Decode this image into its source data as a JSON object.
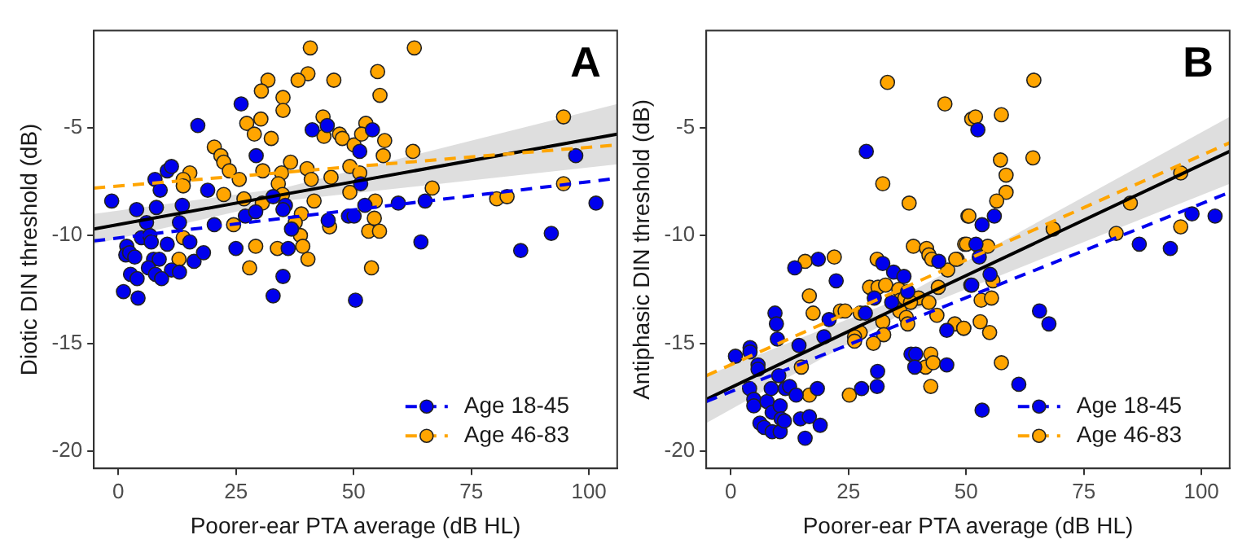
{
  "chart_data": [
    {
      "type": "scatter",
      "xlabel": "Poorer-ear PTA average (dB HL)",
      "ylabel": "Diotic DIN threshold (dB)",
      "annotations": [
        "A"
      ],
      "xlim": [
        -5.2,
        106
      ],
      "ylim": [
        -20.8,
        -0.5
      ],
      "xticks": [
        0,
        25,
        50,
        75,
        100
      ],
      "yticks": [
        -20,
        -15,
        -10,
        -5
      ],
      "grid": false,
      "legend": "bottom right",
      "series": [
        {
          "marker": "circle",
          "name": "Age 18-45",
          "color": "#0000ee",
          "x": [
            -1.4,
            3.9,
            8.1,
            7.8,
            8.9,
            10.4,
            11.3,
            13.6,
            16.9,
            19,
            6,
            4.9,
            6.7,
            7,
            1.8,
            1.6,
            2.4,
            3.5,
            7.5,
            8.7,
            10.4,
            13,
            15.2,
            16.1,
            18.1,
            6.4,
            7.9,
            11.3,
            13,
            2.6,
            4,
            9.2,
            1.1,
            4.2,
            20.4,
            25,
            26.1,
            29.3,
            27,
            29.2,
            32.9,
            35.5,
            35,
            36.8,
            36.1,
            32.9,
            35,
            41.2,
            44.4,
            44.6,
            48.9,
            50.1,
            51.5,
            51.3,
            50.4,
            54,
            52.4,
            59.5,
            65.2,
            64.3,
            85.5,
            92,
            97.2,
            101.5
          ],
          "values": [
            -8.4,
            -8.8,
            -8.7,
            -7.4,
            -7.9,
            -7.0,
            -6.8,
            -8.6,
            -4.9,
            -7.9,
            -9.4,
            -10.1,
            -10.0,
            -10.3,
            -10.5,
            -10.9,
            -10.8,
            -11.0,
            -11.1,
            -11.1,
            -10.4,
            -9.4,
            -10.3,
            -11.2,
            -10.8,
            -11.5,
            -11.8,
            -11.6,
            -11.7,
            -11.8,
            -12.0,
            -12.0,
            -12.6,
            -12.9,
            -9.5,
            -10.6,
            -3.9,
            -6.3,
            -9.1,
            -8.9,
            -8.2,
            -8.6,
            -8.8,
            -9.7,
            -10.6,
            -12.8,
            -11.9,
            -5.1,
            -4.9,
            -9.3,
            -9.1,
            -9.1,
            -7.6,
            -6.1,
            -13.0,
            -5.1,
            -8.6,
            -8.5,
            -8.4,
            -10.3,
            -10.7,
            -9.9,
            -6.3,
            -8.5
          ]
        },
        {
          "marker": "circle",
          "name": "Age 46-83",
          "color": "#ffa500",
          "x": [
            40.8,
            40.3,
            38.2,
            31.8,
            30.4,
            35,
            35,
            45.8,
            43.5,
            43.7,
            47,
            47.6,
            50.1,
            52.6,
            51.7,
            27.3,
            30.3,
            28.9,
            32.5,
            20.4,
            21.8,
            22.4,
            23.6,
            25.7,
            15.2,
            13.8,
            13.8,
            22.4,
            30.7,
            36.6,
            34.7,
            34,
            34.9,
            26.7,
            30.6,
            24.5,
            38.9,
            37.6,
            38.7,
            39.2,
            40.3,
            33.8,
            29.2,
            27.9,
            13.8,
            12.9,
            40.1,
            41,
            41.6,
            45.2,
            49.2,
            51.3,
            49.2,
            44.9,
            53.2,
            53.8,
            62.9,
            55.1,
            55.6,
            56.6,
            56.3,
            62.6,
            54.6,
            54.4,
            55.5,
            66.7,
            80.4,
            82.6,
            94.6,
            94.6
          ],
          "values": [
            -1.3,
            -2.5,
            -2.8,
            -2.8,
            -3.3,
            -3.6,
            -4.2,
            -2.8,
            -4.5,
            -5.4,
            -5.3,
            -5.5,
            -5.8,
            -4.8,
            -5.3,
            -4.8,
            -4.6,
            -5.3,
            -5.5,
            -5.9,
            -6.3,
            -6.6,
            -7.0,
            -7.4,
            -7.1,
            -7.4,
            -7.7,
            -8.1,
            -7.0,
            -6.6,
            -7.1,
            -7.6,
            -8.1,
            -8.3,
            -8.5,
            -9.5,
            -9.0,
            -9.4,
            -10.0,
            -10.5,
            -11.1,
            -10.6,
            -10.5,
            -11.5,
            -10.1,
            -11.1,
            -6.9,
            -7.4,
            -8.4,
            -7.3,
            -6.8,
            -7.1,
            -8.0,
            -9.6,
            -9.8,
            -11.5,
            -1.3,
            -2.4,
            -3.5,
            -5.6,
            -6.3,
            -6.1,
            -8.4,
            -9.2,
            -9.8,
            -7.8,
            -8.3,
            -8.2,
            -4.5,
            -7.6
          ]
        },
        {
          "type": "line",
          "marker": "none",
          "color": "#0000ee",
          "line_style": "dashed",
          "x": [
            -5.2,
            106
          ],
          "values": [
            -10.25,
            -7.35
          ]
        },
        {
          "type": "line",
          "marker": "none",
          "color": "#ffa500",
          "line_style": "dashed",
          "x": [
            -5.2,
            106
          ],
          "values": [
            -7.8,
            -5.8
          ]
        },
        {
          "type": "line",
          "marker": "none",
          "color": "#000000",
          "line_style": "solid",
          "x": [
            -5.2,
            35,
            106
          ],
          "values": [
            -9.7,
            -8.1,
            -5.3
          ],
          "lower": [
            -10.4,
            -8.4,
            -6.7
          ],
          "upper": [
            -9.0,
            -7.8,
            -3.9
          ]
        }
      ]
    },
    {
      "type": "scatter",
      "xlabel": "Poorer-ear PTA average (dB HL)",
      "ylabel": "Antiphasic DIN threshold (dB)",
      "annotations": [
        "B"
      ],
      "xlim": [
        -5.2,
        106
      ],
      "ylim": [
        -20.8,
        -0.5
      ],
      "xticks": [
        0,
        25,
        50,
        75,
        100
      ],
      "yticks": [
        -20,
        -15,
        -10,
        -5
      ],
      "grid": false,
      "legend": "bottom right",
      "series": [
        {
          "marker": "circle",
          "name": "Age 18-45",
          "color": "#0000ee",
          "x": [
            1,
            4.1,
            4.1,
            5.8,
            5.8,
            4,
            4.9,
            4.9,
            7.7,
            6.2,
            7.1,
            8.8,
            10.5,
            9.4,
            9.7,
            9.9,
            10.2,
            8.6,
            8.8,
            10.5,
            10.7,
            11.6,
            12.5,
            11.4,
            13.9,
            14.8,
            16.7,
            15.8,
            19,
            18.4,
            14.5,
            13.6,
            18.6,
            22.4,
            20.9,
            19.8,
            28.8,
            28.6,
            27.8,
            31.1,
            31.2,
            30.5,
            32.3,
            34.6,
            36.8,
            34.2,
            37.6,
            38.3,
            39.3,
            39.1,
            44.2,
            45.9,
            45.9,
            51,
            52.5,
            53.4,
            56,
            52.1,
            52.8,
            55.1,
            51.2,
            65.6,
            67.6,
            61.2,
            53.4,
            86.8,
            93.4,
            98,
            102.9
          ],
          "values": [
            -15.6,
            -15.2,
            -15.4,
            -16.0,
            -16.2,
            -17.1,
            -17.6,
            -17.9,
            -17.7,
            -18.7,
            -18.9,
            -19.1,
            -19.1,
            -13.6,
            -14.1,
            -14.8,
            -16.5,
            -17.1,
            -18.2,
            -17.9,
            -18.5,
            -17.1,
            -17.0,
            -18.6,
            -17.4,
            -18.5,
            -18.4,
            -19.4,
            -18.8,
            -17.1,
            -15.1,
            -11.5,
            -11.1,
            -12.1,
            -13.9,
            -14.7,
            -6.1,
            -13.6,
            -17.1,
            -17.0,
            -16.3,
            -12.9,
            -11.3,
            -11.7,
            -11.9,
            -13.1,
            -12.6,
            -15.5,
            -15.5,
            -16.1,
            -11.2,
            -14.4,
            -16.0,
            -12.3,
            -5.1,
            -9.5,
            -9.1,
            -10.4,
            -11.0,
            -11.8,
            -12.3,
            -13.5,
            -14.1,
            -16.9,
            -18.1,
            -10.4,
            -10.6,
            -9.0,
            -9.1
          ]
        },
        {
          "marker": "circle",
          "name": "Age 46-83",
          "color": "#ffa500",
          "x": [
            33.3,
            45.5,
            51.2,
            32.3,
            37.9,
            38.8,
            41.6,
            42.1,
            42.7,
            48.1,
            49.7,
            50.4,
            46.1,
            44.1,
            15.8,
            22,
            16.7,
            17.5,
            23.3,
            24.3,
            27.5,
            31.1,
            29.5,
            31.3,
            32.9,
            35.7,
            36,
            37,
            39.9,
            38.2,
            42.1,
            43.8,
            35.9,
            37.3,
            37.6,
            32.3,
            32.5,
            27.5,
            26.3,
            26.3,
            30.3,
            47.6,
            49.5,
            42.5,
            41.4,
            43,
            42.5,
            25.2,
            16.7,
            15,
            52,
            57.5,
            64.4,
            64.2,
            57.3,
            58.5,
            58.5,
            56.5,
            50.6,
            50.1,
            54.6,
            47.8,
            55.7,
            53.2,
            55.4,
            53,
            49.5,
            55,
            57.5,
            68.5,
            81.9,
            84.9,
            95.6,
            95.6
          ],
          "values": [
            -2.9,
            -3.9,
            -4.6,
            -7.6,
            -8.5,
            -10.5,
            -10.6,
            -10.9,
            -11.1,
            -11.1,
            -10.4,
            -9.1,
            -11.6,
            -12.4,
            -11.2,
            -11.0,
            -12.8,
            -13.6,
            -13.5,
            -13.5,
            -13.6,
            -11.1,
            -12.4,
            -12.4,
            -12.3,
            -12.5,
            -13.0,
            -12.9,
            -12.9,
            -13.1,
            -13.1,
            -13.7,
            -13.5,
            -13.8,
            -14.1,
            -14.0,
            -14.6,
            -14.5,
            -14.7,
            -14.9,
            -15.0,
            -14.1,
            -14.3,
            -15.5,
            -16.1,
            -15.9,
            -17.0,
            -17.4,
            -17.4,
            -16.1,
            -4.5,
            -4.4,
            -2.8,
            -6.4,
            -6.5,
            -7.2,
            -8.0,
            -8.4,
            -9.1,
            -10.4,
            -10.5,
            -11.1,
            -12.1,
            -13.0,
            -12.9,
            -14.0,
            -14.3,
            -14.5,
            -15.9,
            -9.7,
            -9.9,
            -8.5,
            -7.1,
            -9.6
          ]
        },
        {
          "type": "line",
          "marker": "none",
          "color": "#0000ee",
          "line_style": "dashed",
          "x": [
            -5.2,
            106
          ],
          "values": [
            -17.7,
            -8.0
          ]
        },
        {
          "type": "line",
          "marker": "none",
          "color": "#ffa500",
          "line_style": "dashed",
          "x": [
            -5.2,
            106
          ],
          "values": [
            -16.5,
            -5.7
          ]
        },
        {
          "type": "line",
          "marker": "none",
          "color": "#000000",
          "line_style": "solid",
          "x": [
            -5.2,
            35,
            106
          ],
          "values": [
            -17.6,
            -13.4,
            -6.1
          ],
          "lower": [
            -18.7,
            -13.8,
            -7.6
          ],
          "upper": [
            -16.5,
            -13.0,
            -4.5
          ]
        }
      ]
    }
  ]
}
